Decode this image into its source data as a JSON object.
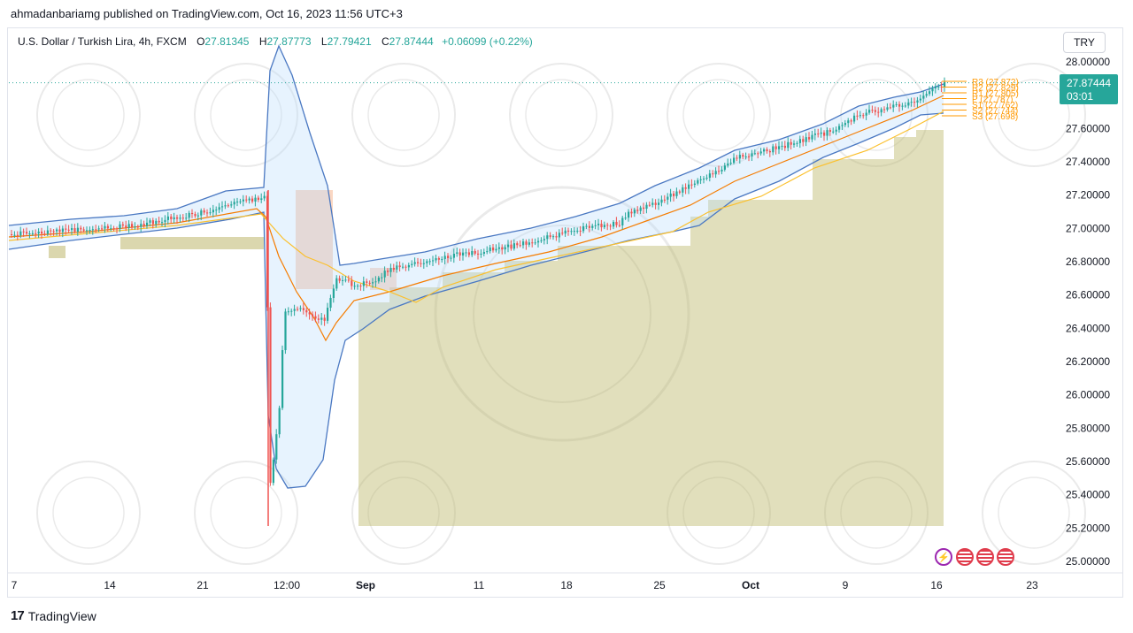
{
  "header": {
    "published": "ahmadanbariamg published on TradingView.com, Oct 16, 2023 11:56 UTC+3",
    "symbol": "U.S. Dollar / Turkish Lira, 4h, FXCM",
    "o_label": "O",
    "o_value": "27.81345",
    "h_label": "H",
    "h_value": "27.87773",
    "l_label": "L",
    "l_value": "27.79421",
    "c_label": "C",
    "c_value": "27.87444",
    "change": "+0.06099 (+0.22%)",
    "currency_button": "TRY"
  },
  "footer": {
    "logo": "17",
    "brand": "TradingView"
  },
  "price_badge": {
    "price": "27.87444",
    "countdown": "03:01"
  },
  "pivots": [
    {
      "label": "R3 (27.872)",
      "value": 27.872
    },
    {
      "label": "R2 (27.829)",
      "value": 27.829
    },
    {
      "label": "R1 (27.805)",
      "value": 27.805
    },
    {
      "label": "P (27.787)",
      "value": 27.787
    },
    {
      "label": "S1 (27.762)",
      "value": 27.762
    },
    {
      "label": "S2 (27.744)",
      "value": 27.744
    },
    {
      "label": "S3 (27.698)",
      "value": 27.698
    }
  ],
  "events": [
    "bolt-icon",
    "us-flag-icon",
    "us-flag-icon",
    "us-flag-icon"
  ],
  "colors": {
    "up": "#26a69a",
    "down": "#ef5350",
    "band": "#2962ff",
    "ma_orange": "#f57c00",
    "ma_yellow": "#fbc02d",
    "area": "#bdb76b",
    "pivot": "#ff9800"
  },
  "chart_data": {
    "type": "candlestick",
    "title": "U.S. Dollar / Turkish Lira, 4h, FXCM",
    "ylim": [
      25.0,
      28.0
    ],
    "y_ticks": [
      "28.00000",
      "27.80000",
      "27.60000",
      "27.40000",
      "27.20000",
      "27.00000",
      "26.80000",
      "26.60000",
      "26.40000",
      "26.20000",
      "26.00000",
      "25.80000",
      "25.60000",
      "25.40000",
      "25.20000",
      "25.00000"
    ],
    "x_ticks": [
      "7",
      "14",
      "21",
      "12:00",
      "Sep",
      "11",
      "18",
      "25",
      "Oct",
      "9",
      "16",
      "23"
    ],
    "last_price": 27.87444,
    "series": [
      {
        "name": "",
        "type": "close",
        "x": [
          "Aug 7",
          "Aug 14",
          "Aug 21",
          "Aug 25",
          "Aug 26",
          "Aug 28",
          "Aug 31",
          "Sep 1",
          "Sep 11",
          "Sep 18",
          "Sep 25",
          "Oct 2",
          "Oct 9",
          "Oct 13",
          "Oct 16"
        ],
        "values": [
          26.96,
          26.99,
          27.04,
          27.15,
          25.5,
          26.48,
          26.45,
          26.62,
          26.82,
          26.93,
          27.02,
          27.38,
          27.58,
          27.72,
          27.87
        ]
      }
    ]
  }
}
